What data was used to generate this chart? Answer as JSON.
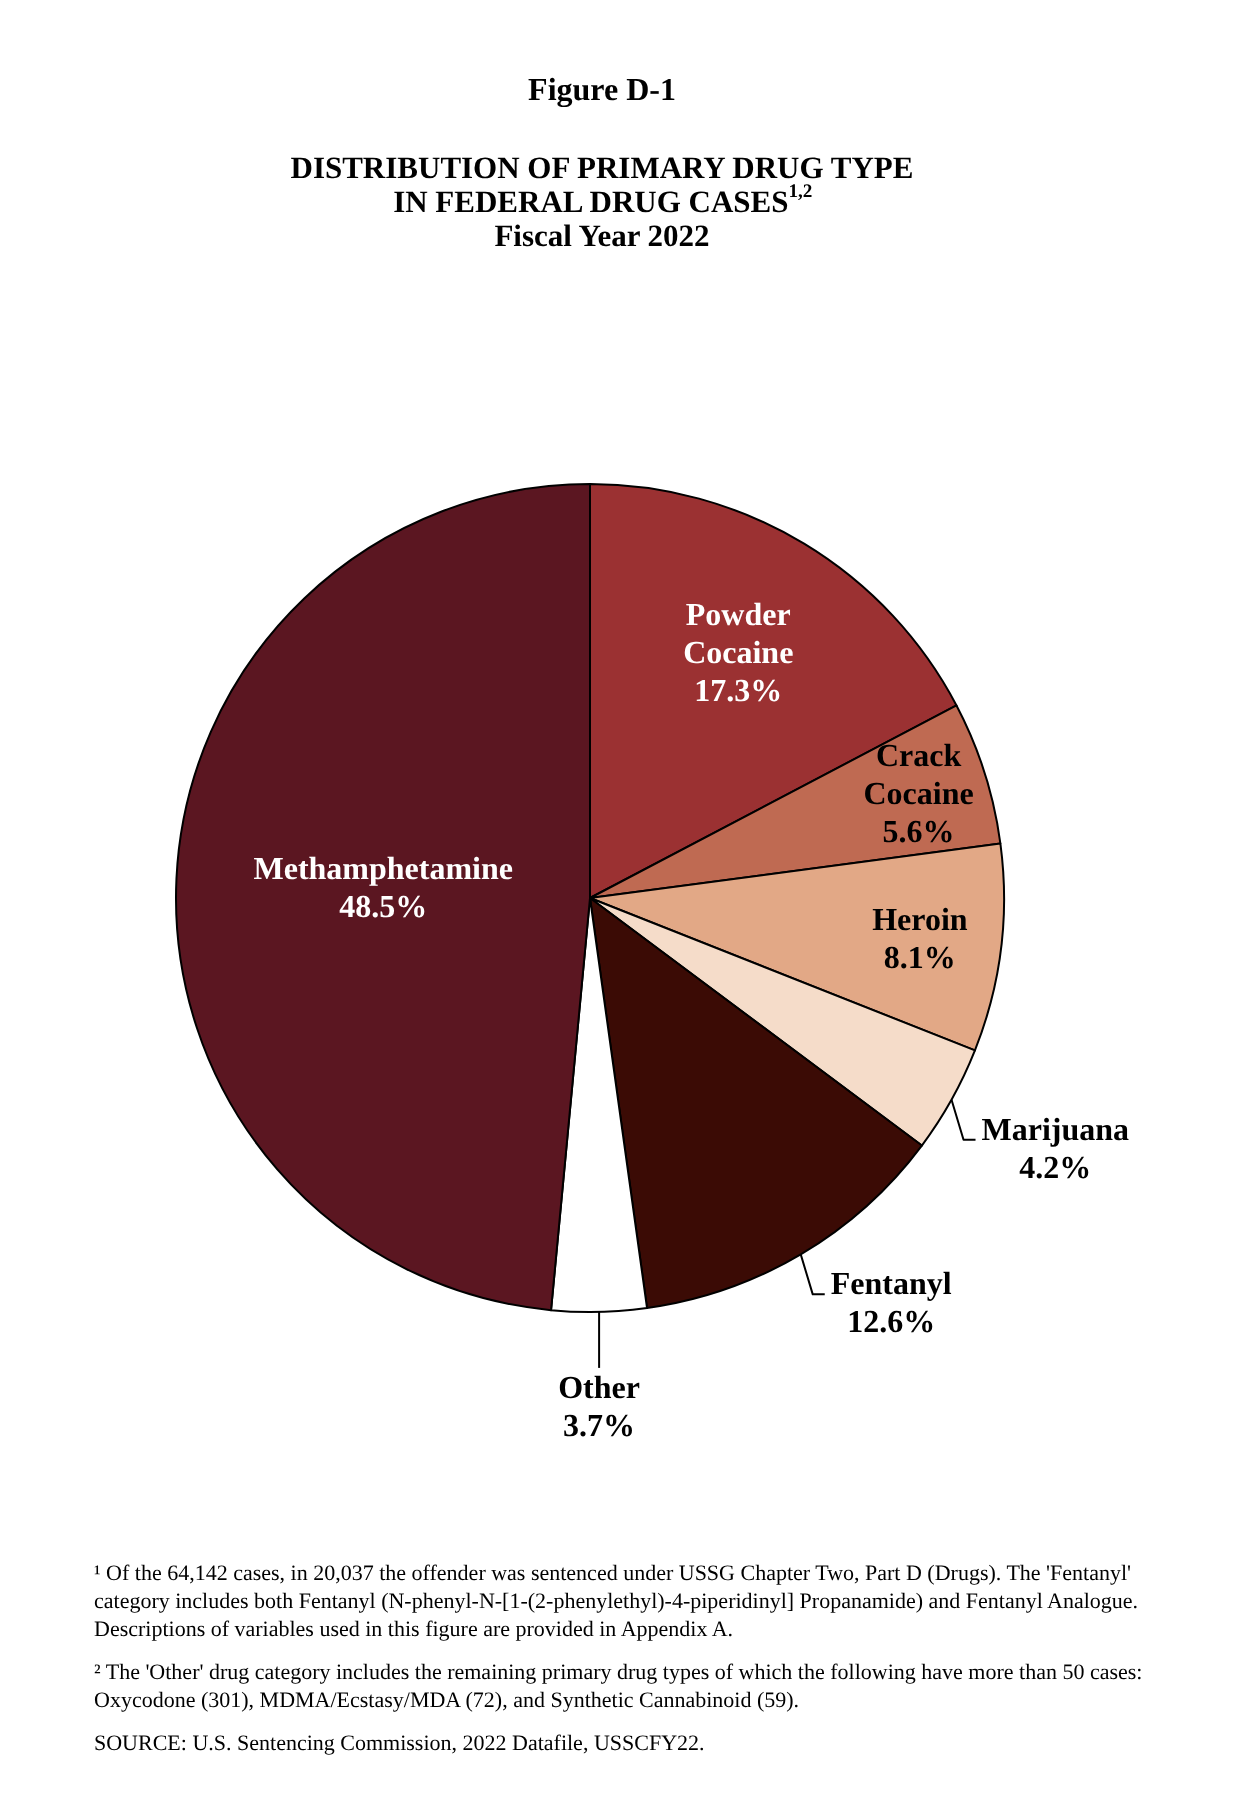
{
  "chart_data": {
    "type": "pie",
    "title": "Figure D-1",
    "subtitle": "DISTRIBUTION OF PRIMARY DRUG TYPE\nIN FEDERAL DRUG CASES$^{1,2}$\nFiscal Year 2022",
    "categories": [
      "Powder Cocaine",
      "Crack Cocaine",
      "Heroin",
      "Marijuana",
      "Fentanyl",
      "Other",
      "Methamphetamine"
    ],
    "values": [
      17.3,
      5.6,
      8.1,
      4.2,
      12.6,
      3.7,
      48.5
    ],
    "value_labels": [
      "17.3%",
      "5.6%",
      "8.1%",
      "4.2%",
      "12.6%",
      "3.7%",
      "48.5%"
    ],
    "colors": [
      "#9b3132",
      "#bf6a52",
      "#e2a886",
      "#f5dcc9",
      "#3b0b05",
      "#ffffff",
      "#5b1621"
    ],
    "annotations": [
      "¹ Of the 64,142 cases, in 20,037 the offender was sentenced under USSG Chapter Two, Part D (Drugs). The 'Fentanyl'\ncategory includes both Fentanyl (N-phenyl-N-[1-(2-phenylethyl)-4-piperidinyl] Propanamide) and Fentanyl Analogue.\nDescriptions of variables used in this figure are provided in Appendix A.",
      "² The 'Other' drug category includes the remaining primary drug types of which the following have more than 50 cases:\nOxycodone (301), MDMA/Ecstasy/MDA (72), and Synthetic Cannabinoid (59).",
      "SOURCE: U.S. Sentencing Commission, 2022 Datafile, USSCFY22."
    ]
  }
}
